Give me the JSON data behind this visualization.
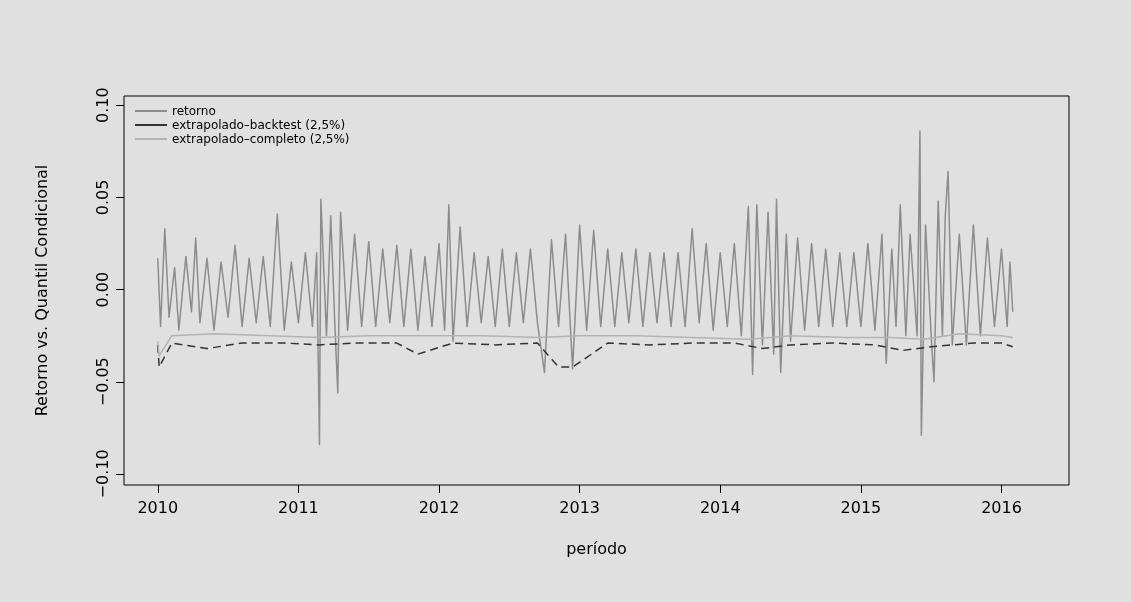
{
  "chart_data": {
    "type": "line",
    "xlabel": "período",
    "ylabel": "Retorno vs. Quantil Condicional",
    "xlim": [
      2009.76,
      2016.48
    ],
    "ylim": [
      -0.106,
      0.105
    ],
    "xticks": [
      2010,
      2011,
      2012,
      2013,
      2014,
      2015,
      2016
    ],
    "yticks": [
      {
        "value": -0.1,
        "label": "−0.10"
      },
      {
        "value": -0.05,
        "label": "−0.05"
      },
      {
        "value": 0,
        "label": "0.00"
      },
      {
        "value": 0.05,
        "label": "0.05"
      },
      {
        "value": 0.1,
        "label": "0.10"
      }
    ],
    "grid": false,
    "legend": "top left",
    "series": [
      {
        "name": "retorno",
        "color": "#8c8c8c",
        "line_style": "solid",
        "x": [
          2010.0,
          2010.02,
          2010.05,
          2010.08,
          2010.12,
          2010.15,
          2010.2,
          2010.24,
          2010.27,
          2010.3,
          2010.35,
          2010.4,
          2010.45,
          2010.5,
          2010.55,
          2010.6,
          2010.65,
          2010.7,
          2010.75,
          2010.8,
          2010.85,
          2010.9,
          2010.95,
          2011.0,
          2011.05,
          2011.1,
          2011.13,
          2011.15,
          2011.16,
          2011.2,
          2011.23,
          2011.26,
          2011.28,
          2011.3,
          2011.35,
          2011.4,
          2011.45,
          2011.5,
          2011.55,
          2011.6,
          2011.65,
          2011.7,
          2011.75,
          2011.8,
          2011.85,
          2011.9,
          2011.95,
          2012.0,
          2012.04,
          2012.07,
          2012.1,
          2012.15,
          2012.2,
          2012.25,
          2012.3,
          2012.35,
          2012.4,
          2012.45,
          2012.5,
          2012.55,
          2012.6,
          2012.65,
          2012.7,
          2012.75,
          2012.8,
          2012.85,
          2012.9,
          2012.95,
          2013.0,
          2013.05,
          2013.1,
          2013.15,
          2013.2,
          2013.25,
          2013.3,
          2013.35,
          2013.4,
          2013.45,
          2013.5,
          2013.55,
          2013.6,
          2013.65,
          2013.7,
          2013.75,
          2013.8,
          2013.85,
          2013.9,
          2013.95,
          2014.0,
          2014.05,
          2014.1,
          2014.15,
          2014.2,
          2014.23,
          2014.26,
          2014.3,
          2014.34,
          2014.38,
          2014.4,
          2014.43,
          2014.47,
          2014.5,
          2014.55,
          2014.6,
          2014.65,
          2014.7,
          2014.75,
          2014.8,
          2014.85,
          2014.9,
          2014.95,
          2015.0,
          2015.05,
          2015.1,
          2015.15,
          2015.18,
          2015.22,
          2015.25,
          2015.28,
          2015.32,
          2015.35,
          2015.4,
          2015.42,
          2015.43,
          2015.46,
          2015.5,
          2015.52,
          2015.55,
          2015.58,
          2015.6,
          2015.62,
          2015.65,
          2015.7,
          2015.75,
          2015.8,
          2015.85,
          2015.9,
          2015.95,
          2016.0,
          2016.04,
          2016.06,
          2016.08
        ],
        "values": [
          0.017,
          -0.02,
          0.033,
          -0.015,
          0.012,
          -0.022,
          0.018,
          -0.012,
          0.028,
          -0.018,
          0.017,
          -0.022,
          0.015,
          -0.015,
          0.024,
          -0.02,
          0.017,
          -0.018,
          0.018,
          -0.02,
          0.041,
          -0.022,
          0.015,
          -0.018,
          0.02,
          -0.02,
          0.02,
          -0.084,
          0.049,
          -0.025,
          0.04,
          -0.02,
          -0.056,
          0.042,
          -0.022,
          0.03,
          -0.02,
          0.026,
          -0.02,
          0.022,
          -0.018,
          0.024,
          -0.02,
          0.022,
          -0.022,
          0.018,
          -0.02,
          0.025,
          -0.022,
          0.046,
          -0.028,
          0.034,
          -0.02,
          0.02,
          -0.018,
          0.018,
          -0.02,
          0.022,
          -0.02,
          0.02,
          -0.018,
          0.022,
          -0.018,
          -0.045,
          0.027,
          -0.02,
          0.03,
          -0.043,
          0.035,
          -0.022,
          0.032,
          -0.02,
          0.022,
          -0.02,
          0.02,
          -0.018,
          0.022,
          -0.02,
          0.02,
          -0.018,
          0.02,
          -0.02,
          0.02,
          -0.02,
          0.033,
          -0.018,
          0.025,
          -0.022,
          0.02,
          -0.02,
          0.025,
          -0.025,
          0.045,
          -0.046,
          0.046,
          -0.03,
          0.042,
          -0.035,
          0.049,
          -0.045,
          0.03,
          -0.028,
          0.028,
          -0.022,
          0.025,
          -0.02,
          0.022,
          -0.02,
          0.02,
          -0.02,
          0.02,
          -0.02,
          0.025,
          -0.022,
          0.03,
          -0.04,
          0.022,
          -0.02,
          0.046,
          -0.025,
          0.03,
          -0.025,
          0.086,
          -0.079,
          0.035,
          -0.025,
          -0.05,
          0.048,
          -0.025,
          0.04,
          0.064,
          -0.03,
          0.03,
          -0.03,
          0.035,
          -0.025,
          0.028,
          -0.02,
          0.022,
          -0.02,
          0.015,
          -0.012
        ]
      },
      {
        "name": "extrapolado–backtest (2,5%)",
        "color": "#333333",
        "line_style": "dashed",
        "x": [
          2010.0,
          2010.01,
          2010.1,
          2010.35,
          2010.6,
          2010.9,
          2011.15,
          2011.4,
          2011.7,
          2011.85,
          2012.1,
          2012.4,
          2012.7,
          2012.85,
          2012.95,
          2013.2,
          2013.5,
          2013.8,
          2014.1,
          2014.3,
          2014.5,
          2014.8,
          2015.1,
          2015.3,
          2015.5,
          2015.8,
          2016.0,
          2016.08
        ],
        "values": [
          -0.03,
          -0.042,
          -0.029,
          -0.032,
          -0.029,
          -0.029,
          -0.03,
          -0.029,
          -0.029,
          -0.035,
          -0.029,
          -0.03,
          -0.029,
          -0.042,
          -0.042,
          -0.029,
          -0.03,
          -0.029,
          -0.029,
          -0.032,
          -0.03,
          -0.029,
          -0.03,
          -0.033,
          -0.031,
          -0.029,
          -0.029,
          -0.031
        ]
      },
      {
        "name": "extrapolado–completo (2,5%)",
        "color": "#b3b3b3",
        "line_style": "solid",
        "x": [
          2010.0,
          2010.01,
          2010.1,
          2010.4,
          2010.8,
          2011.15,
          2011.5,
          2011.9,
          2012.3,
          2012.7,
          2013.0,
          2013.4,
          2013.8,
          2014.2,
          2014.5,
          2014.9,
          2015.2,
          2015.45,
          2015.7,
          2016.0,
          2016.08
        ],
        "values": [
          -0.028,
          -0.036,
          -0.025,
          -0.024,
          -0.025,
          -0.026,
          -0.025,
          -0.025,
          -0.025,
          -0.026,
          -0.025,
          -0.025,
          -0.026,
          -0.027,
          -0.025,
          -0.026,
          -0.026,
          -0.027,
          -0.024,
          -0.025,
          -0.026
        ]
      }
    ]
  }
}
